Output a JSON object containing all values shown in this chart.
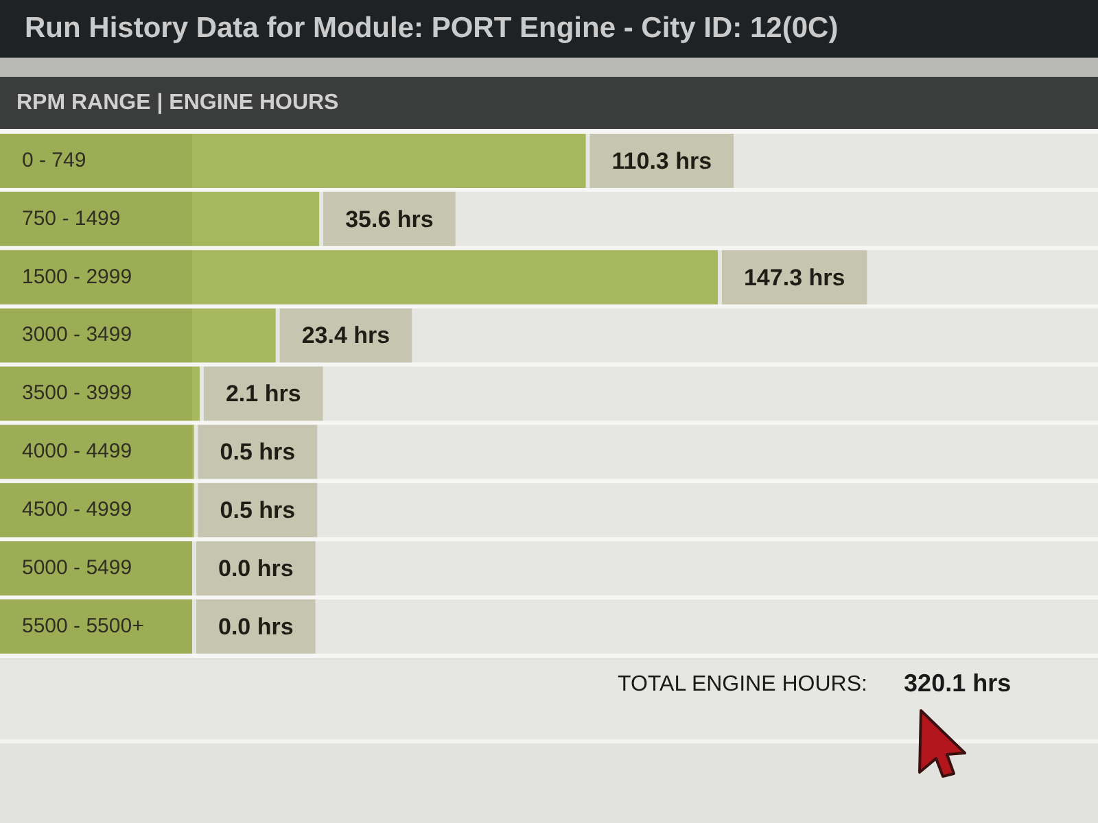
{
  "chart_data": {
    "type": "bar",
    "orientation": "horizontal",
    "title": "Run History Data for Module: PORT Engine - City ID: 12(0C)",
    "subtitle": "RPM RANGE | ENGINE HOURS",
    "categories": [
      "0 - 749",
      "750 - 1499",
      "1500 - 2999",
      "3000 - 3499",
      "3500 - 3999",
      "4000 - 4499",
      "4500 - 4999",
      "5000 - 5499",
      "5500 - 5500+"
    ],
    "values": [
      110.3,
      35.6,
      147.3,
      23.4,
      2.1,
      0.5,
      0.5,
      0.0,
      0.0
    ],
    "color": "#a6b75e",
    "value_labels": [
      "110.3 hrs",
      "35.6 hrs",
      "147.3 hrs",
      "23.4 hrs",
      "2.1 hrs",
      "0.5 hrs",
      "0.5 hrs",
      "0.0 hrs",
      "0.0 hrs"
    ],
    "annotations": [
      "TOTAL ENGINE HOURS:",
      "320.1 hrs"
    ]
  }
}
